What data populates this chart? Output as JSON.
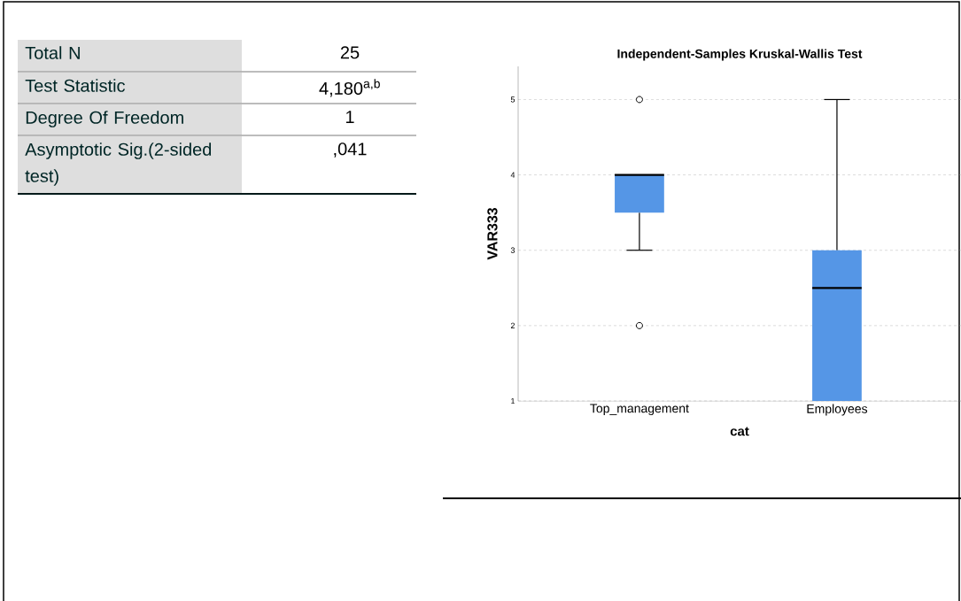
{
  "chart_data": [
    {
      "type": "other",
      "annotations": [
        "Total N",
        "25",
        "Test Statistic",
        "4,180$^{a,b}$",
        "Degree Of Freedom",
        "1",
        "Asymptotic Sig.(2-sided test)",
        ",041"
      ]
    },
    {
      "type": "box",
      "title": "Independent-Samples Kruskal-Wallis Test",
      "xlabel": "cat",
      "ylabel": "VAR333",
      "categories": [
        "Top_management",
        "Employees"
      ],
      "boxes": [
        {
          "low": 3,
          "q1": 3.5,
          "median": 4,
          "q3": 4,
          "high": 4,
          "outliers": [
            5,
            2
          ]
        },
        {
          "low": 1,
          "q1": 1,
          "median": 2.5,
          "q3": 3,
          "high": 5
        }
      ],
      "color": "#5596e6",
      "ylim": [
        1,
        5.44
      ],
      "yticks": [
        1,
        2,
        3,
        4,
        5
      ],
      "grid": "y"
    }
  ]
}
